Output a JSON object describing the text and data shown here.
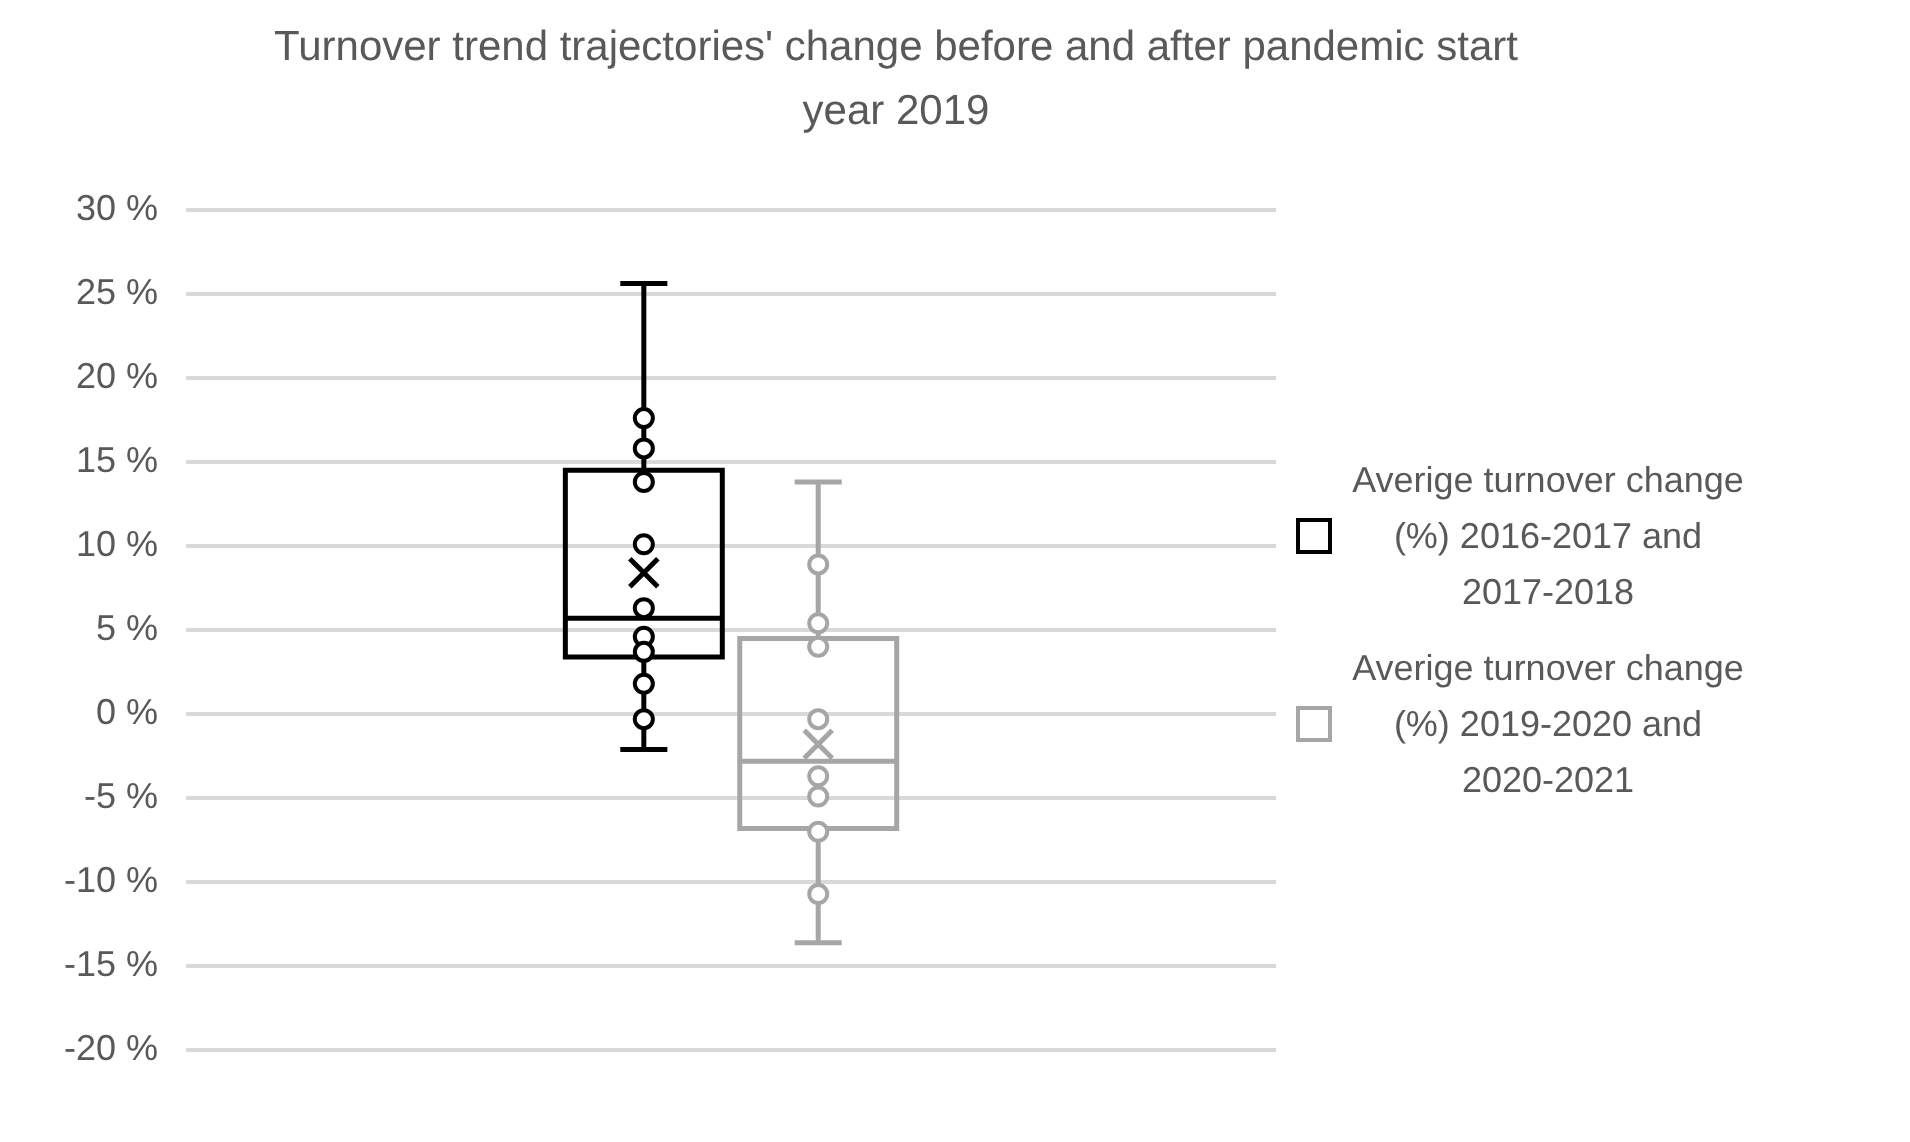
{
  "chart_data": {
    "type": "box",
    "title": "Turnover trend trajectories' change before and after pandemic start year 2019",
    "categories": [
      null
    ],
    "series": [
      {
        "name": "Averige turnover change (%) 2016-2017 and 2017-2018",
        "color": "#000000",
        "boxes": [
          {
            "low": -2.1,
            "q1": 3.4,
            "median": 5.7,
            "q3": 14.5,
            "high": 25.6,
            "mean": 8.4
          }
        ]
      },
      {
        "name": "Averige turnover change (%) 2019-2020 and 2020-2021",
        "color": "#a6a6a6",
        "boxes": [
          {
            "low": -13.6,
            "q1": -6.8,
            "median": -2.8,
            "q3": 4.5,
            "high": 13.8,
            "mean": -1.8
          }
        ]
      },
      {
        "type": "scatter",
        "color": "#000000",
        "x": [
          null,
          null,
          null,
          null,
          null,
          null,
          null,
          null,
          null
        ],
        "values": [
          17.6,
          15.8,
          13.8,
          10.1,
          6.3,
          4.6,
          3.7,
          1.8,
          -0.3
        ]
      },
      {
        "type": "scatter",
        "color": "#a6a6a6",
        "x": [
          null,
          null,
          null,
          null,
          null,
          null,
          null,
          null
        ],
        "values": [
          8.9,
          5.4,
          4.0,
          -0.3,
          -3.7,
          -4.9,
          -7.0,
          -10.7
        ]
      }
    ],
    "ylim": [
      -20,
      30
    ],
    "yticks": [
      {
        "value": -20,
        "label": "-20 %"
      },
      {
        "value": -15,
        "label": "-15 %"
      },
      {
        "value": -10,
        "label": "-10 %"
      },
      {
        "value": -5,
        "label": "-5 %"
      },
      {
        "value": 0,
        "label": "0 %"
      },
      {
        "value": 5,
        "label": "5 %"
      },
      {
        "value": 10,
        "label": "10 %"
      },
      {
        "value": 15,
        "label": "15 %"
      },
      {
        "value": 20,
        "label": "20 %"
      },
      {
        "value": 25,
        "label": "25 %"
      },
      {
        "value": 30,
        "label": "30 %"
      }
    ],
    "grid": "y",
    "legend": "right",
    "marker": "circle"
  }
}
